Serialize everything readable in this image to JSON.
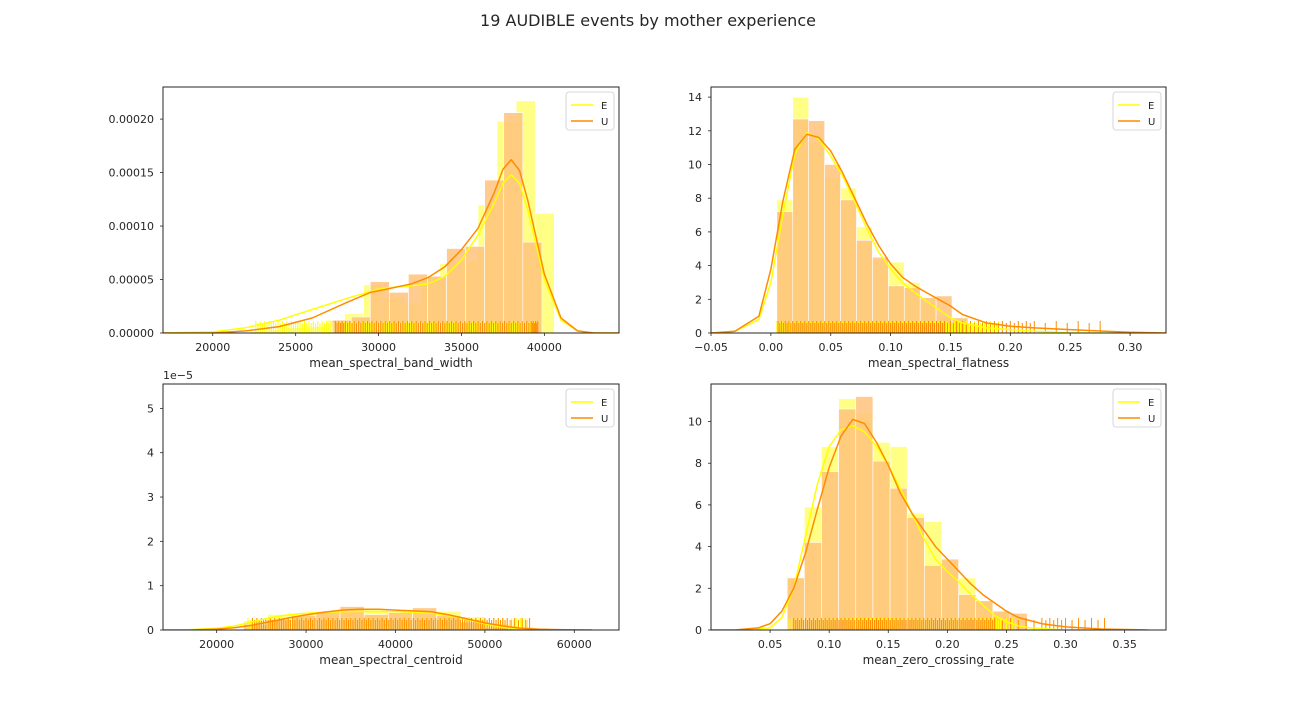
{
  "figure": {
    "title": "19 AUDIBLE events by mother experience"
  },
  "colors": {
    "E": "#ffff00",
    "U": "#ff8c00",
    "E_hist": "#ffff7f",
    "U_hist": "#ffc27a",
    "axis": "#262626",
    "background": "#ffffff"
  },
  "chart_data": [
    {
      "type": "histogram+kde+rug",
      "xlabel": "mean_spectral_band_width",
      "ylabel": "",
      "xlim": [
        17000,
        44500
      ],
      "ylim": [
        0,
        0.00023
      ],
      "xticks": [
        20000,
        25000,
        30000,
        35000,
        40000
      ],
      "xtick_labels": [
        "20000",
        "25000",
        "30000",
        "35000",
        "40000"
      ],
      "yticks": [
        0,
        5e-05,
        0.0001,
        0.00015,
        0.0002
      ],
      "ytick_labels": [
        "0.00000",
        "0.00005",
        "0.00010",
        "0.00015",
        "0.00020"
      ],
      "y_offset_label": "",
      "legend": {
        "position": "top-right",
        "entries": [
          "E",
          "U"
        ]
      },
      "bin_width": 1150,
      "series": [
        {
          "name": "E",
          "bin_starts": [
            22200,
            23350,
            24500,
            25650,
            26800,
            27950,
            29100,
            30250,
            31400,
            32550,
            33700,
            34850,
            36000,
            37150,
            38300,
            39450
          ],
          "values": [
            1.5e-06,
            3e-06,
            5e-06,
            6e-06,
            1.2e-05,
            1.8e-05,
            4.5e-05,
            3.4e-05,
            2.8e-05,
            5.2e-05,
            6.5e-05,
            6.8e-05,
            0.00012,
            0.000198,
            0.000217,
            0.000112
          ],
          "kde_x": [
            17000,
            20000,
            22000,
            24000,
            26000,
            28000,
            30000,
            31000,
            32000,
            33000,
            34000,
            35000,
            36000,
            37000,
            37500,
            38000,
            38500,
            39000,
            40000,
            41000,
            42000,
            43000,
            44500
          ],
          "kde_y": [
            0,
            1e-06,
            5e-06,
            1.2e-05,
            2.2e-05,
            3.2e-05,
            4.1e-05,
            4.3e-05,
            4.4e-05,
            4.6e-05,
            5.3e-05,
            6.8e-05,
            9.2e-05,
            0.000122,
            0.00014,
            0.000148,
            0.00014,
            0.000115,
            5e-05,
            1.2e-05,
            2e-06,
            0,
            0
          ],
          "rug": [
            22600,
            23400,
            24200,
            25000,
            25800,
            26600,
            27400,
            28200,
            29000,
            29800,
            30600,
            31400,
            32200,
            33000,
            33800,
            34600,
            35400,
            36200,
            37000,
            37800,
            38600,
            39400
          ]
        },
        {
          "name": "U",
          "bin_starts": [
            27200,
            28350,
            29500,
            30650,
            31800,
            32950,
            34100,
            35250,
            36400,
            37550,
            38700
          ],
          "values": [
            1.2e-05,
            1.5e-05,
            4.8e-05,
            3.8e-05,
            5.5e-05,
            5.3e-05,
            7.9e-05,
            8.1e-05,
            0.000143,
            0.000206,
            8.5e-05
          ],
          "kde_x": [
            17000,
            20000,
            22000,
            24000,
            26000,
            28000,
            29500,
            30500,
            32000,
            33000,
            34000,
            35000,
            36000,
            37000,
            37500,
            38000,
            38500,
            39000,
            40000,
            41000,
            42000,
            43000,
            44500
          ],
          "kde_y": [
            0,
            0,
            2e-06,
            6e-06,
            1.4e-05,
            2.8e-05,
            3.8e-05,
            4.1e-05,
            4.6e-05,
            5.2e-05,
            6.2e-05,
            7.8e-05,
            9.8e-05,
            0.000132,
            0.000153,
            0.000162,
            0.000152,
            0.000124,
            5.5e-05,
            1.4e-05,
            2e-06,
            0,
            0
          ],
          "rug": [
            27400,
            28000,
            28800,
            29600,
            30400,
            31200,
            32000,
            32800,
            33600,
            34400,
            35200,
            36000,
            36800,
            37600,
            38400,
            39200,
            39600
          ]
        }
      ]
    },
    {
      "type": "histogram+kde+rug",
      "xlabel": "mean_spectral_flatness",
      "ylabel": "",
      "xlim": [
        -0.05,
        0.33
      ],
      "ylim": [
        0,
        14.6
      ],
      "xticks": [
        -0.05,
        0.0,
        0.05,
        0.1,
        0.15,
        0.2,
        0.25,
        0.3
      ],
      "xtick_labels": [
        "−0.05",
        "0.00",
        "0.05",
        "0.10",
        "0.15",
        "0.20",
        "0.25",
        "0.30"
      ],
      "yticks": [
        0,
        2,
        4,
        6,
        8,
        10,
        12,
        14
      ],
      "ytick_labels": [
        "0",
        "2",
        "4",
        "6",
        "8",
        "10",
        "12",
        "14"
      ],
      "y_offset_label": "",
      "legend": {
        "position": "top-right",
        "entries": [
          "E",
          "U"
        ]
      },
      "bin_width": 0.0133,
      "series": [
        {
          "name": "E",
          "bin_starts": [
            0.005,
            0.0183,
            0.0316,
            0.0449,
            0.0582,
            0.0715,
            0.0848,
            0.0981,
            0.1114,
            0.1247,
            0.138,
            0.1513,
            0.1646
          ],
          "values": [
            7.9,
            14.0,
            11.3,
            9.2,
            8.6,
            6.3,
            4.3,
            4.2,
            3.0,
            1.8,
            1.0,
            0.8,
            0.4
          ],
          "kde_x": [
            -0.05,
            -0.03,
            -0.01,
            0.0,
            0.01,
            0.02,
            0.03,
            0.04,
            0.05,
            0.06,
            0.07,
            0.08,
            0.09,
            0.1,
            0.11,
            0.12,
            0.13,
            0.14,
            0.15,
            0.16,
            0.18,
            0.2,
            0.22,
            0.25,
            0.3,
            0.33
          ],
          "kde_y": [
            0,
            0.1,
            0.8,
            3.0,
            7.0,
            10.6,
            11.9,
            11.5,
            10.5,
            9.3,
            7.8,
            6.2,
            4.8,
            3.8,
            3.0,
            2.4,
            1.9,
            1.4,
            0.9,
            0.6,
            0.3,
            0.2,
            0.1,
            0,
            0,
            0
          ],
          "rug": [
            0.005,
            0.012,
            0.02,
            0.03,
            0.04,
            0.05,
            0.06,
            0.07,
            0.08,
            0.09,
            0.1,
            0.11,
            0.12,
            0.13,
            0.14,
            0.15,
            0.16,
            0.17,
            0.18,
            0.19
          ]
        },
        {
          "name": "U",
          "bin_starts": [
            0.005,
            0.0183,
            0.0316,
            0.0449,
            0.0582,
            0.0715,
            0.0848,
            0.0981,
            0.1114,
            0.1247,
            0.138,
            0.1513
          ],
          "values": [
            7.2,
            12.7,
            12.6,
            10.0,
            7.9,
            5.5,
            4.5,
            2.8,
            2.7,
            2.1,
            2.2,
            0.9
          ],
          "kde_x": [
            -0.05,
            -0.03,
            -0.01,
            0.0,
            0.01,
            0.02,
            0.03,
            0.04,
            0.05,
            0.06,
            0.07,
            0.08,
            0.09,
            0.1,
            0.11,
            0.12,
            0.13,
            0.14,
            0.15,
            0.16,
            0.18,
            0.2,
            0.22,
            0.25,
            0.28,
            0.3,
            0.33
          ],
          "kde_y": [
            0,
            0.1,
            1.0,
            3.8,
            7.8,
            10.9,
            11.8,
            11.6,
            10.8,
            9.5,
            8.0,
            6.5,
            5.2,
            4.1,
            3.3,
            2.8,
            2.4,
            2.0,
            1.6,
            1.1,
            0.6,
            0.4,
            0.3,
            0.2,
            0.1,
            0.05,
            0
          ],
          "rug": [
            0.006,
            0.015,
            0.025,
            0.035,
            0.045,
            0.055,
            0.065,
            0.075,
            0.085,
            0.095,
            0.105,
            0.115,
            0.125,
            0.135,
            0.145,
            0.16,
            0.18,
            0.2,
            0.22,
            0.275
          ]
        }
      ]
    },
    {
      "type": "histogram+kde+rug",
      "xlabel": "mean_spectral_centroid",
      "ylabel": "",
      "xlim": [
        14000,
        65000
      ],
      "ylim": [
        0,
        5.55e-05
      ],
      "xticks": [
        20000,
        30000,
        40000,
        50000,
        60000
      ],
      "xtick_labels": [
        "20000",
        "30000",
        "40000",
        "50000",
        "60000"
      ],
      "yticks": [
        0,
        1e-05,
        2e-05,
        3e-05,
        4e-05,
        5e-05
      ],
      "ytick_labels": [
        "0",
        "1",
        "2",
        "3",
        "4",
        "5"
      ],
      "y_offset_label": "1e−5",
      "legend": {
        "position": "top-right",
        "entries": [
          "E",
          "U"
        ]
      },
      "bin_width": 2700,
      "series": [
        {
          "name": "E",
          "bin_starts": [
            23000,
            25700,
            28400,
            31100,
            33800,
            36500,
            39200,
            41900,
            44600,
            47300,
            50000,
            52700
          ],
          "values": [
            2.1e-06,
            3.5e-06,
            3.8e-06,
            4.2e-06,
            4.6e-06,
            4.6e-06,
            4.3e-06,
            4.1e-06,
            4.2e-06,
            3e-06,
            1.4e-06,
            5e-07
          ],
          "kde_x": [
            14000,
            17000,
            20000,
            22000,
            24000,
            26000,
            28000,
            30000,
            32000,
            34000,
            36000,
            38000,
            40000,
            42000,
            44000,
            46000,
            48000,
            50000,
            52000,
            54000,
            56000,
            58000,
            62000
          ],
          "kde_y": [
            0,
            1e-07,
            4e-07,
            9e-07,
            1.8e-06,
            2.8e-06,
            3.4e-06,
            3.8e-06,
            4e-06,
            4.1e-06,
            4.2e-06,
            4.1e-06,
            4.1e-06,
            4e-06,
            3.8e-06,
            3.2e-06,
            2.4e-06,
            1.4e-06,
            6e-07,
            2e-07,
            1e-07,
            0,
            0
          ],
          "rug": [
            23500,
            25000,
            26500,
            28000,
            29500,
            31000,
            32500,
            34000,
            35500,
            37000,
            38500,
            40000,
            41500,
            43000,
            44500,
            46000,
            47500,
            49000,
            50500,
            52000,
            53500,
            55000
          ]
        },
        {
          "name": "U",
          "bin_starts": [
            23000,
            25700,
            28400,
            31100,
            33800,
            36500,
            39200,
            41900,
            44600,
            47300,
            50000,
            52700
          ],
          "values": [
            1.3e-06,
            2.4e-06,
            3.3e-06,
            4.1e-06,
            5.3e-06,
            3.5e-06,
            3.9e-06,
            5e-06,
            3.3e-06,
            1.8e-06,
            6e-07,
            6e-07
          ],
          "kde_x": [
            14000,
            17000,
            20000,
            22000,
            24000,
            26000,
            28000,
            30000,
            32000,
            34000,
            36000,
            38000,
            40000,
            42000,
            44000,
            46000,
            48000,
            50000,
            52000,
            54000,
            56000,
            58000,
            62000
          ],
          "kde_y": [
            0,
            0,
            2e-07,
            5e-07,
            1.1e-06,
            1.9e-06,
            2.7e-06,
            3.4e-06,
            4e-06,
            4.5e-06,
            4.7e-06,
            4.7e-06,
            4.5e-06,
            4.3e-06,
            4.1e-06,
            3.4e-06,
            2.5e-06,
            1.6e-06,
            9e-07,
            4e-07,
            2e-07,
            1e-07,
            0
          ],
          "rug": [
            24000,
            25500,
            27000,
            28500,
            30000,
            31500,
            33000,
            34500,
            36000,
            37500,
            39000,
            40500,
            42000,
            43500,
            45000,
            46500,
            48000,
            49500,
            51000,
            52500,
            55000
          ]
        }
      ]
    },
    {
      "type": "histogram+kde+rug",
      "xlabel": "mean_zero_crossing_rate",
      "ylabel": "",
      "xlim": [
        0.0,
        0.385
      ],
      "ylim": [
        0,
        11.8
      ],
      "xticks": [
        0.05,
        0.1,
        0.15,
        0.2,
        0.25,
        0.3,
        0.35
      ],
      "xtick_labels": [
        "0.05",
        "0.10",
        "0.15",
        "0.20",
        "0.25",
        "0.30",
        "0.35"
      ],
      "yticks": [
        0,
        2,
        4,
        6,
        8,
        10
      ],
      "ytick_labels": [
        "0",
        "2",
        "4",
        "6",
        "8",
        "10"
      ],
      "y_offset_label": "",
      "legend": {
        "position": "top-right",
        "entries": [
          "E",
          "U"
        ]
      },
      "bin_width": 0.0145,
      "series": [
        {
          "name": "E",
          "bin_starts": [
            0.0645,
            0.079,
            0.0935,
            0.108,
            0.1225,
            0.137,
            0.1515,
            0.166,
            0.1805,
            0.195,
            0.2095,
            0.224,
            0.2385
          ],
          "values": [
            2.5,
            5.9,
            8.8,
            11.1,
            10.4,
            9.0,
            8.8,
            5.6,
            5.2,
            3.3,
            2.5,
            1.4,
            0.9
          ],
          "kde_x": [
            0.0,
            0.03,
            0.05,
            0.06,
            0.07,
            0.08,
            0.09,
            0.1,
            0.11,
            0.12,
            0.13,
            0.14,
            0.15,
            0.16,
            0.17,
            0.18,
            0.19,
            0.2,
            0.21,
            0.22,
            0.23,
            0.24,
            0.25,
            0.26,
            0.27,
            0.3,
            0.35
          ],
          "kde_y": [
            0,
            0,
            0.1,
            0.6,
            2.0,
            4.5,
            7.0,
            8.8,
            9.6,
            9.8,
            9.5,
            8.8,
            7.9,
            6.8,
            5.6,
            4.4,
            3.4,
            2.8,
            2.3,
            1.7,
            1.2,
            0.7,
            0.4,
            0.2,
            0.1,
            0,
            0
          ],
          "rug": [
            0.065,
            0.075,
            0.085,
            0.095,
            0.105,
            0.115,
            0.125,
            0.135,
            0.145,
            0.155,
            0.165,
            0.175,
            0.185,
            0.195,
            0.205,
            0.215,
            0.225,
            0.235,
            0.245,
            0.26
          ]
        },
        {
          "name": "U",
          "bin_starts": [
            0.0645,
            0.079,
            0.0935,
            0.108,
            0.1225,
            0.137,
            0.1515,
            0.166,
            0.1805,
            0.195,
            0.2095,
            0.224,
            0.2385,
            0.253
          ],
          "values": [
            2.5,
            4.2,
            7.6,
            10.6,
            11.2,
            8.1,
            6.8,
            5.4,
            3.1,
            3.4,
            1.7,
            1.4,
            0.9,
            0.8
          ],
          "kde_x": [
            0.0,
            0.02,
            0.04,
            0.05,
            0.06,
            0.07,
            0.08,
            0.09,
            0.1,
            0.11,
            0.12,
            0.13,
            0.14,
            0.15,
            0.16,
            0.17,
            0.18,
            0.19,
            0.2,
            0.21,
            0.22,
            0.23,
            0.24,
            0.25,
            0.26,
            0.28,
            0.3,
            0.33,
            0.37
          ],
          "kde_y": [
            0,
            0,
            0.1,
            0.3,
            0.9,
            2.0,
            3.7,
            5.8,
            7.8,
            9.3,
            10.1,
            9.9,
            9.0,
            7.9,
            6.6,
            5.6,
            4.8,
            4.0,
            3.4,
            2.8,
            2.2,
            1.7,
            1.3,
            0.9,
            0.6,
            0.3,
            0.15,
            0.05,
            0
          ],
          "rug": [
            0.07,
            0.08,
            0.09,
            0.1,
            0.11,
            0.12,
            0.13,
            0.14,
            0.15,
            0.16,
            0.17,
            0.18,
            0.19,
            0.2,
            0.21,
            0.22,
            0.23,
            0.24,
            0.28,
            0.3,
            0.333
          ]
        }
      ]
    }
  ]
}
